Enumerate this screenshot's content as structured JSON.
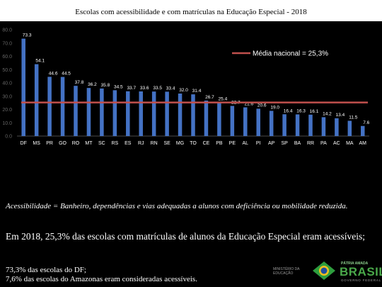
{
  "slide": {
    "definition": "Acessibilidade = Banheiro, dependências e vias adequadas a alunos com deficiência ou mobilidade reduzida.",
    "headline": "Em 2018, 25,3% das escolas com matrículas de alunos da Educação Especial eram acessíveis;",
    "facts": [
      "73,3% das escolas do DF;",
      "7,6% das escolas do Amazonas eram consideradas acessíveis."
    ],
    "ministry_text": "MINISTÉRIO DA EDUCAÇÃO",
    "gov_slogan": "PÁTRIA AMADA",
    "gov_name": "BRASIL",
    "gov_sub": "GOVERNO FEDERAL"
  },
  "chart_data": {
    "type": "bar",
    "title": "Escolas com acessibilidade e com matrículas na Educação Especial - 2018",
    "categories": [
      "DF",
      "MS",
      "PR",
      "GO",
      "RO",
      "MT",
      "SC",
      "RS",
      "ES",
      "RJ",
      "RN",
      "SE",
      "MG",
      "TO",
      "CE",
      "PB",
      "PE",
      "AL",
      "PI",
      "AP",
      "SP",
      "BA",
      "RR",
      "PA",
      "AC",
      "MA",
      "AM"
    ],
    "values": [
      73.3,
      54.1,
      44.6,
      44.5,
      37.8,
      36.2,
      35.8,
      34.5,
      33.7,
      33.6,
      33.5,
      33.4,
      32.0,
      31.4,
      26.7,
      25.4,
      22.7,
      21.6,
      20.6,
      19.0,
      16.4,
      16.3,
      16.1,
      14.2,
      13.4,
      11.5,
      7.6
    ],
    "value_labels": [
      "73.3",
      "54.1",
      "44.6",
      "44.5",
      "37.8",
      "36.2",
      "35.8",
      "34.5",
      "33.7",
      "33.6",
      "33.5",
      "33.4",
      "32.0",
      "31.4",
      "26.7",
      "25.4",
      "22.7",
      "21.6",
      "20.6",
      "19.0",
      "16.4",
      "16.3",
      "16.1",
      "14.2",
      "13.4",
      "11.5",
      "7.6"
    ],
    "yticks": [
      "0.0",
      "10.0",
      "20.0",
      "30.0",
      "40.0",
      "50.0",
      "60.0",
      "70.0",
      "80.0"
    ],
    "ylim": [
      0,
      80
    ],
    "reference_line": {
      "value": 25.3,
      "label": "Média nacional = 25,3%"
    },
    "grid": false,
    "legend_position": "top-right",
    "bar_color": "#4472c4",
    "line_color": "#c0504d"
  }
}
